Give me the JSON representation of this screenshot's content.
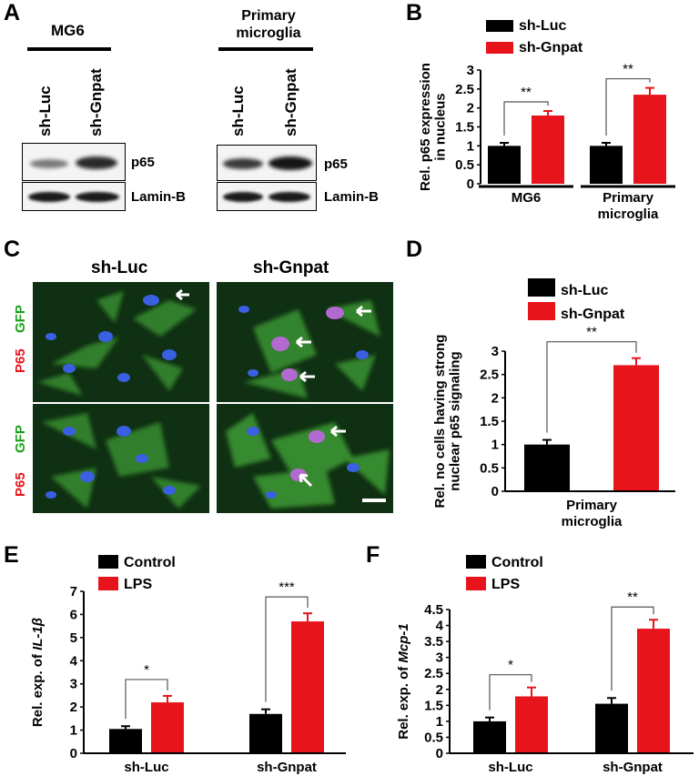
{
  "panels": {
    "A": {
      "label": "A",
      "cell_lines": [
        "MG6",
        "Primary\nmicroglia"
      ],
      "lanes": [
        "sh-Luc",
        "sh-Gnpat"
      ],
      "blots": [
        "p65",
        "Lamin-B"
      ]
    },
    "C": {
      "label": "C",
      "columns": [
        "sh-Luc",
        "sh-Gnpat"
      ],
      "stain_green": "GFP",
      "stain_red": "P65"
    }
  },
  "colors": {
    "control": "#000000",
    "treatment": "#e8141b",
    "gfp": "#1aa01a",
    "p65": "#e8141b"
  },
  "chart_data": [
    {
      "panel": "B",
      "type": "bar",
      "categories": [
        "MG6",
        "Primary\nmicroglia"
      ],
      "series": [
        {
          "name": "sh-Luc",
          "values": [
            1.0,
            1.0
          ],
          "errors": [
            0.08,
            0.08
          ]
        },
        {
          "name": "sh-Gnpat",
          "values": [
            1.8,
            2.35
          ],
          "errors": [
            0.12,
            0.18
          ]
        }
      ],
      "ylabel": "Rel. p65 expression\nin nucleus",
      "ylim": [
        0,
        3
      ],
      "yticks": [
        "0",
        "0.5",
        "1",
        "1.5",
        "2",
        "2.5",
        "3"
      ],
      "significance": [
        "**",
        "**"
      ],
      "legend": "top"
    },
    {
      "panel": "D",
      "type": "bar",
      "categories": [
        "Primary\nmicroglia"
      ],
      "series": [
        {
          "name": "sh-Luc",
          "values": [
            1.0
          ],
          "errors": [
            0.1
          ]
        },
        {
          "name": "sh-Gnpat",
          "values": [
            2.7
          ],
          "errors": [
            0.15
          ]
        }
      ],
      "ylabel": "Rel. no cells having strong\nnuclear p65 signaling",
      "ylim": [
        0,
        3
      ],
      "yticks": [
        "0",
        "0.5",
        "1",
        "1.5",
        "2",
        "2.5",
        "3"
      ],
      "significance": [
        "**"
      ],
      "legend": "top"
    },
    {
      "panel": "E",
      "type": "bar",
      "categories": [
        "sh-Luc",
        "sh-Gnpat"
      ],
      "series": [
        {
          "name": "Control",
          "values": [
            1.05,
            1.7
          ],
          "errors": [
            0.12,
            0.2
          ]
        },
        {
          "name": "LPS",
          "values": [
            2.2,
            5.7
          ],
          "errors": [
            0.28,
            0.35
          ]
        }
      ],
      "ylabel": "Rel. exp. of ",
      "ylabel_gene": "IL-1β",
      "ylim": [
        0,
        7
      ],
      "yticks": [
        "0",
        "1",
        "2",
        "3",
        "4",
        "5",
        "6",
        "7"
      ],
      "significance": [
        "*",
        "***"
      ],
      "legend": "top-left"
    },
    {
      "panel": "F",
      "type": "bar",
      "categories": [
        "sh-Luc",
        "sh-Gnpat"
      ],
      "series": [
        {
          "name": "Control",
          "values": [
            1.0,
            1.55
          ],
          "errors": [
            0.12,
            0.18
          ]
        },
        {
          "name": "LPS",
          "values": [
            1.78,
            3.9
          ],
          "errors": [
            0.28,
            0.28
          ]
        }
      ],
      "ylabel": "Rel. exp. of ",
      "ylabel_gene": "Mcp-1",
      "ylim": [
        0,
        4.5
      ],
      "yticks": [
        "0",
        "0.5",
        "1",
        "1.5",
        "2",
        "2.5",
        "3",
        "3.5",
        "4",
        "4.5"
      ],
      "significance": [
        "*",
        "**"
      ],
      "legend": "top-left"
    }
  ]
}
